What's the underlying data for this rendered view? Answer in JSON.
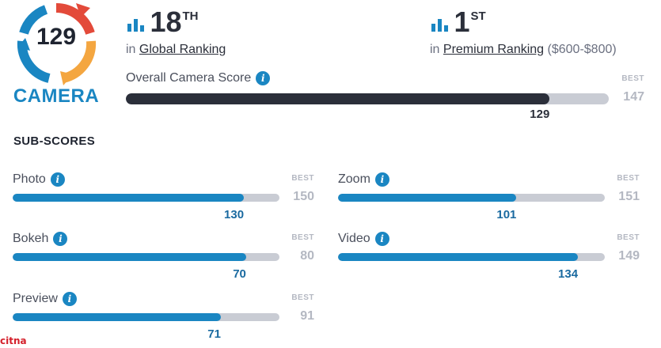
{
  "badge": {
    "score": "129",
    "category": "CAMERA",
    "colors": {
      "ring_blue": "#1a86c2",
      "ring_orange": "#f4a640",
      "ring_red": "#e34a3a"
    }
  },
  "global_ranking": {
    "rank": "18",
    "suffix": "TH",
    "prefix": "in",
    "link": "Global Ranking"
  },
  "premium_ranking": {
    "rank": "1",
    "suffix": "ST",
    "prefix": "in",
    "link": "Premium Ranking",
    "extra": "($600-$800)"
  },
  "overall": {
    "label": "Overall Camera Score",
    "score": "129",
    "score_value": 129,
    "best_tag": "BEST",
    "best": "147",
    "best_value": 147
  },
  "subscores_title": "SUB-SCORES",
  "subscores": [
    {
      "label": "Photo",
      "score": "130",
      "score_value": 130,
      "best_tag": "BEST",
      "best": "150",
      "best_value": 150
    },
    {
      "label": "Zoom",
      "score": "101",
      "score_value": 101,
      "best_tag": "BEST",
      "best": "151",
      "best_value": 151
    },
    {
      "label": "Bokeh",
      "score": "70",
      "score_value": 70,
      "best_tag": "BEST",
      "best": "80",
      "best_value": 80
    },
    {
      "label": "Video",
      "score": "134",
      "score_value": 134,
      "best_tag": "BEST",
      "best": "149",
      "best_value": 149
    },
    {
      "label": "Preview",
      "score": "71",
      "score_value": 71,
      "best_tag": "BEST",
      "best": "91",
      "best_value": 91
    }
  ],
  "info_glyph": "i",
  "watermark": "citna",
  "colors": {
    "accent": "#1a86c2",
    "dark_bar": "#2b2f3a",
    "track": "#c9ccd4",
    "muted": "#b4b8c2"
  }
}
